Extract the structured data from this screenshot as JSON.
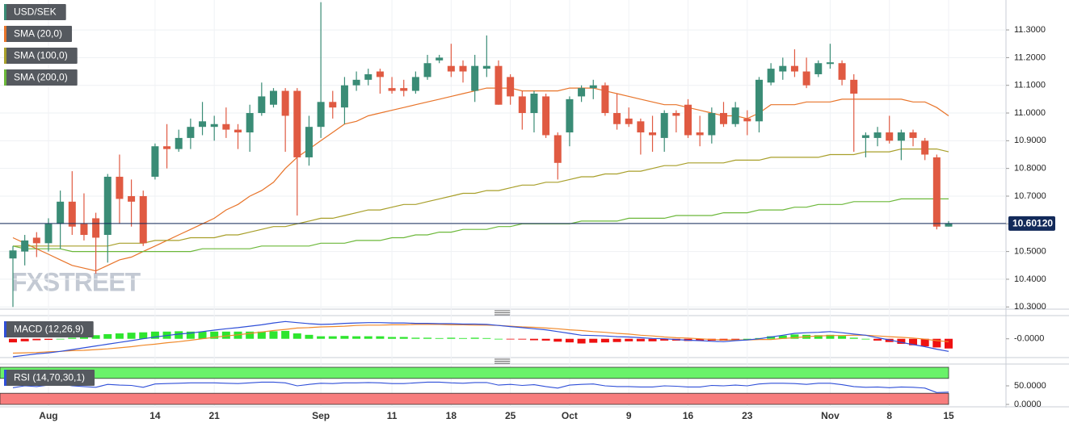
{
  "chart_data": [
    {
      "type": "candlestick",
      "name": "USD/SEK",
      "up_color": "#3a8c76",
      "down_color": "#e05a42",
      "watermark": "FXSTREET",
      "categories": [
        null,
        null,
        null,
        "Aug",
        null,
        null,
        null,
        null,
        null,
        null,
        null,
        null,
        "14",
        null,
        null,
        null,
        null,
        "21",
        null,
        null,
        null,
        null,
        null,
        null,
        null,
        null,
        "Sep",
        null,
        null,
        null,
        null,
        null,
        "11",
        null,
        null,
        null,
        null,
        "18",
        null,
        null,
        null,
        null,
        "25",
        null,
        null,
        null,
        null,
        "Oct",
        null,
        null,
        null,
        null,
        "9",
        null,
        null,
        null,
        null,
        "16",
        null,
        null,
        null,
        null,
        "23",
        null,
        null,
        null,
        null,
        null,
        null,
        "Nov",
        null,
        null,
        null,
        null,
        "8",
        null,
        null,
        null,
        null,
        "15"
      ],
      "open": [
        10.475,
        10.5,
        10.55,
        10.53,
        10.6,
        10.68,
        10.6,
        10.62,
        10.56,
        10.77,
        10.7,
        10.7,
        10.77,
        10.88,
        10.87,
        10.91,
        10.95,
        10.95,
        10.96,
        10.94,
        10.93,
        11.0,
        11.03,
        11.08,
        11.08,
        10.84,
        10.95,
        11.04,
        11.02,
        11.1,
        11.12,
        11.15,
        11.09,
        11.09,
        11.08,
        11.13,
        11.19,
        11.17,
        11.17,
        11.08,
        11.16,
        11.17,
        11.13,
        11.06,
        11.0,
        11.06,
        10.92,
        10.93,
        11.06,
        11.09,
        11.1,
        11.0,
        10.98,
        10.97,
        10.93,
        10.91,
        11.0,
        11.03,
        10.93,
        10.92,
        11.0,
        10.96,
        10.98,
        10.97,
        11.11,
        11.15,
        11.17,
        11.15,
        11.14,
        11.177,
        11.18,
        11.12,
        10.91,
        10.91,
        10.93,
        10.9,
        10.93,
        10.9,
        10.84,
        10.59
      ],
      "high": [
        10.52,
        10.56,
        10.57,
        10.62,
        10.72,
        10.79,
        10.71,
        10.64,
        10.78,
        10.85,
        10.76,
        10.72,
        10.89,
        10.96,
        10.94,
        10.98,
        11.04,
        10.99,
        11.02,
        10.96,
        11.03,
        11.11,
        11.09,
        11.09,
        11.09,
        10.99,
        11.4,
        11.08,
        11.13,
        11.15,
        11.16,
        11.16,
        11.13,
        11.12,
        11.15,
        11.21,
        11.21,
        11.25,
        11.19,
        11.21,
        11.28,
        11.19,
        11.14,
        11.08,
        11.08,
        11.07,
        10.93,
        11.06,
        11.1,
        11.12,
        11.11,
        11.07,
        11.02,
        10.98,
        10.99,
        11.01,
        11.01,
        11.05,
        10.99,
        11.02,
        11.04,
        11.04,
        11.01,
        11.13,
        11.18,
        11.2,
        11.23,
        11.2,
        11.19,
        11.25,
        11.19,
        11.14,
        10.93,
        10.95,
        10.99,
        10.94,
        10.94,
        10.91,
        10.85,
        10.61
      ],
      "low": [
        10.3,
        10.45,
        10.48,
        10.5,
        10.51,
        10.56,
        10.54,
        10.42,
        10.46,
        10.6,
        10.59,
        10.52,
        10.76,
        10.8,
        10.86,
        10.87,
        10.92,
        10.9,
        10.91,
        10.87,
        10.86,
        10.99,
        11.02,
        10.86,
        10.63,
        10.81,
        10.91,
        10.98,
        10.96,
        11.08,
        11.1,
        11.07,
        11.07,
        11.06,
        11.07,
        11.12,
        11.18,
        11.13,
        11.11,
        11.04,
        11.13,
        11.03,
        11.03,
        10.94,
        10.93,
        10.91,
        10.76,
        10.88,
        11.04,
        11.05,
        10.99,
        10.94,
        10.95,
        10.85,
        10.86,
        10.86,
        10.93,
        10.91,
        10.88,
        10.89,
        10.95,
        10.95,
        10.92,
        10.93,
        11.1,
        11.12,
        11.13,
        11.09,
        11.13,
        11.16,
        11.1,
        10.86,
        10.84,
        10.88,
        10.89,
        10.83,
        10.88,
        10.83,
        10.58,
        10.59
      ],
      "close": [
        10.504,
        10.54,
        10.53,
        10.6,
        10.68,
        10.59,
        10.56,
        10.55,
        10.77,
        10.69,
        10.68,
        10.53,
        10.88,
        10.87,
        10.91,
        10.95,
        10.97,
        10.96,
        10.94,
        10.93,
        11.0,
        11.06,
        11.08,
        10.99,
        10.84,
        10.95,
        11.04,
        11.02,
        11.1,
        11.12,
        11.14,
        11.13,
        11.08,
        11.08,
        11.13,
        11.18,
        11.2,
        11.15,
        11.15,
        11.17,
        11.17,
        11.03,
        11.06,
        11.0,
        11.07,
        10.92,
        10.82,
        11.05,
        11.09,
        11.1,
        11.0,
        10.96,
        10.96,
        10.93,
        10.92,
        11.0,
        10.99,
        10.92,
        10.92,
        11.0,
        10.96,
        11.02,
        10.97,
        11.12,
        11.16,
        11.17,
        11.15,
        11.1,
        11.18,
        11.183,
        11.12,
        11.07,
        10.92,
        10.93,
        10.9,
        10.93,
        10.91,
        10.85,
        10.59,
        10.6012
      ],
      "series": [
        {
          "name": "SMA (20,0)",
          "color": "#e8742a",
          "values": [
            10.55,
            10.53,
            10.51,
            10.49,
            10.47,
            10.45,
            10.44,
            10.43,
            10.45,
            10.47,
            10.48,
            10.5,
            10.52,
            10.54,
            10.56,
            10.58,
            10.6,
            10.62,
            10.65,
            10.67,
            10.7,
            10.72,
            10.75,
            10.8,
            10.84,
            10.87,
            10.9,
            10.93,
            10.96,
            10.97,
            10.99,
            11.0,
            11.01,
            11.02,
            11.03,
            11.04,
            11.05,
            11.06,
            11.07,
            11.08,
            11.09,
            11.09,
            11.09,
            11.08,
            11.08,
            11.08,
            11.08,
            11.09,
            11.09,
            11.09,
            11.08,
            11.07,
            11.06,
            11.05,
            11.04,
            11.03,
            11.03,
            11.02,
            11.01,
            11.0,
            10.99,
            10.99,
            10.98,
            11.0,
            11.03,
            11.03,
            11.03,
            11.04,
            11.04,
            11.04,
            11.05,
            11.05,
            11.05,
            11.05,
            11.05,
            11.05,
            11.04,
            11.04,
            11.02,
            10.99
          ]
        },
        {
          "name": "SMA (100,0)",
          "color": "#a89f2a",
          "values": [
            10.52,
            10.52,
            10.52,
            10.52,
            10.52,
            10.52,
            10.52,
            10.52,
            10.52,
            10.53,
            10.53,
            10.53,
            10.54,
            10.54,
            10.54,
            10.55,
            10.55,
            10.55,
            10.56,
            10.56,
            10.57,
            10.58,
            10.59,
            10.59,
            10.6,
            10.61,
            10.62,
            10.62,
            10.63,
            10.64,
            10.65,
            10.65,
            10.66,
            10.67,
            10.67,
            10.68,
            10.69,
            10.7,
            10.71,
            10.71,
            10.72,
            10.72,
            10.73,
            10.74,
            10.74,
            10.75,
            10.75,
            10.76,
            10.77,
            10.77,
            10.78,
            10.78,
            10.79,
            10.79,
            10.8,
            10.81,
            10.81,
            10.82,
            10.82,
            10.82,
            10.82,
            10.83,
            10.83,
            10.83,
            10.84,
            10.84,
            10.84,
            10.84,
            10.84,
            10.85,
            10.85,
            10.85,
            10.86,
            10.86,
            10.86,
            10.87,
            10.87,
            10.87,
            10.87,
            10.86
          ]
        },
        {
          "name": "SMA (200,0)",
          "color": "#6cb83a",
          "values": [
            10.52,
            10.51,
            10.51,
            10.51,
            10.51,
            10.5,
            10.5,
            10.5,
            10.5,
            10.5,
            10.5,
            10.5,
            10.5,
            10.5,
            10.5,
            10.5,
            10.51,
            10.51,
            10.51,
            10.51,
            10.51,
            10.52,
            10.52,
            10.52,
            10.52,
            10.52,
            10.53,
            10.53,
            10.53,
            10.54,
            10.54,
            10.54,
            10.55,
            10.55,
            10.56,
            10.56,
            10.57,
            10.57,
            10.58,
            10.58,
            10.58,
            10.59,
            10.59,
            10.6,
            10.6,
            10.6,
            10.6,
            10.6,
            10.61,
            10.61,
            10.61,
            10.61,
            10.62,
            10.62,
            10.62,
            10.62,
            10.63,
            10.63,
            10.63,
            10.63,
            10.64,
            10.64,
            10.64,
            10.65,
            10.65,
            10.65,
            10.66,
            10.66,
            10.67,
            10.67,
            10.67,
            10.68,
            10.68,
            10.68,
            10.68,
            10.69,
            10.69,
            10.69,
            10.69,
            10.69
          ]
        }
      ],
      "last_price": {
        "value": 10.6012,
        "label": "10.60120",
        "color": "#132a5a"
      },
      "ylim": [
        10.292,
        11.408
      ],
      "yticks": [
        {
          "value": 10.3,
          "label": "10.3000"
        },
        {
          "value": 10.4,
          "label": "10.4000"
        },
        {
          "value": 10.5,
          "label": "10.5000"
        },
        {
          "value": 10.6,
          "label": "10.6000"
        },
        {
          "value": 10.7,
          "label": "10.7000"
        },
        {
          "value": 10.8,
          "label": "10.8000"
        },
        {
          "value": 10.9,
          "label": "10.9000"
        },
        {
          "value": 11.0,
          "label": "11.0000"
        },
        {
          "value": 11.1,
          "label": "11.1000"
        },
        {
          "value": 11.2,
          "label": "11.2000"
        },
        {
          "value": 11.3,
          "label": "11.3000"
        }
      ],
      "grid": true
    },
    {
      "type": "macd",
      "name": "MACD (12,26,9)",
      "line_color": "#2f4fd8",
      "signal_color": "#f08a2c",
      "up_color": "#2ee52e",
      "down_color": "#ee1111",
      "macd": [
        -0.05,
        -0.046,
        -0.042,
        -0.039,
        -0.035,
        -0.03,
        -0.025,
        -0.02,
        -0.015,
        -0.01,
        -0.005,
        0.0,
        0.005,
        0.009,
        0.013,
        0.016,
        0.02,
        0.024,
        0.028,
        0.031,
        0.035,
        0.039,
        0.044,
        0.048,
        0.045,
        0.042,
        0.04,
        0.041,
        0.043,
        0.044,
        0.045,
        0.045,
        0.044,
        0.044,
        0.043,
        0.043,
        0.042,
        0.042,
        0.041,
        0.041,
        0.04,
        0.037,
        0.034,
        0.031,
        0.028,
        0.025,
        0.02,
        0.015,
        0.01,
        0.009,
        0.008,
        0.006,
        0.005,
        0.003,
        0.001,
        0.0,
        -0.002,
        -0.004,
        -0.005,
        -0.007,
        -0.008,
        -0.005,
        -0.003,
        0.0,
        0.005,
        0.01,
        0.015,
        0.017,
        0.018,
        0.02,
        0.017,
        0.013,
        0.01,
        0.003,
        -0.003,
        -0.01,
        -0.016,
        -0.022,
        -0.029,
        -0.035
      ],
      "signal": [
        -0.04,
        -0.039,
        -0.038,
        -0.036,
        -0.035,
        -0.033,
        -0.032,
        -0.03,
        -0.028,
        -0.025,
        -0.022,
        -0.018,
        -0.015,
        -0.011,
        -0.008,
        -0.004,
        0.0,
        0.004,
        0.008,
        0.011,
        0.015,
        0.019,
        0.023,
        0.026,
        0.03,
        0.031,
        0.033,
        0.034,
        0.035,
        0.037,
        0.038,
        0.038,
        0.039,
        0.039,
        0.04,
        0.04,
        0.04,
        0.039,
        0.039,
        0.038,
        0.038,
        0.037,
        0.035,
        0.033,
        0.032,
        0.03,
        0.028,
        0.025,
        0.023,
        0.02,
        0.018,
        0.015,
        0.013,
        0.01,
        0.008,
        0.005,
        0.003,
        0.002,
        0.0,
        -0.002,
        -0.003,
        -0.003,
        -0.003,
        -0.002,
        -0.002,
        0.001,
        0.003,
        0.006,
        0.008,
        0.009,
        0.009,
        0.01,
        0.01,
        0.008,
        0.006,
        0.004,
        0.002,
        -0.001,
        -0.005,
        -0.008
      ],
      "histogram": [
        -0.01,
        -0.007,
        -0.004,
        -0.003,
        0.0,
        0.003,
        0.007,
        0.01,
        0.013,
        0.015,
        0.017,
        0.018,
        0.02,
        0.02,
        0.021,
        0.02,
        0.02,
        0.02,
        0.02,
        0.02,
        0.02,
        0.02,
        0.021,
        0.022,
        0.015,
        0.011,
        0.007,
        0.007,
        0.008,
        0.007,
        0.007,
        0.007,
        0.005,
        0.005,
        0.003,
        0.003,
        0.002,
        0.003,
        0.002,
        0.003,
        0.002,
        0.0,
        -0.001,
        -0.002,
        -0.004,
        -0.005,
        -0.008,
        -0.01,
        -0.013,
        -0.011,
        -0.01,
        -0.009,
        -0.007,
        -0.007,
        -0.007,
        -0.005,
        -0.005,
        -0.006,
        -0.005,
        -0.005,
        -0.005,
        -0.002,
        0.0,
        0.002,
        0.007,
        0.009,
        0.012,
        0.011,
        0.01,
        0.011,
        0.008,
        0.003,
        0.0,
        -0.005,
        -0.009,
        -0.014,
        -0.018,
        -0.021,
        -0.024,
        -0.027
      ],
      "ylim": [
        -0.05,
        0.06
      ],
      "yticks": [
        {
          "value": 0,
          "label": "-0.0000"
        }
      ]
    },
    {
      "type": "rsi",
      "name": "RSI (14,70,30,1)",
      "color": "#2f4fd8",
      "upper": 70,
      "lower": 30,
      "upper_color": "#6af26a",
      "lower_color": "#f77d7d",
      "values": [
        45,
        50,
        48,
        52,
        55,
        50,
        48,
        46,
        54,
        52,
        51,
        46,
        55,
        56,
        57,
        58,
        58,
        58,
        57,
        56,
        58,
        60,
        60,
        58,
        50,
        54,
        57,
        56,
        58,
        58,
        59,
        58,
        56,
        56,
        58,
        60,
        60,
        58,
        57,
        59,
        59,
        52,
        54,
        51,
        53,
        48,
        44,
        52,
        54,
        55,
        50,
        48,
        48,
        47,
        47,
        50,
        49,
        47,
        47,
        51,
        50,
        52,
        50,
        55,
        57,
        57,
        56,
        54,
        57,
        57,
        53,
        48,
        46,
        47,
        45,
        47,
        46,
        44,
        32,
        33
      ],
      "ylim": [
        0,
        100
      ],
      "yticks": [
        {
          "value": 50,
          "label": "50.0000"
        },
        {
          "value": 0,
          "label": "0.0000"
        }
      ]
    }
  ]
}
